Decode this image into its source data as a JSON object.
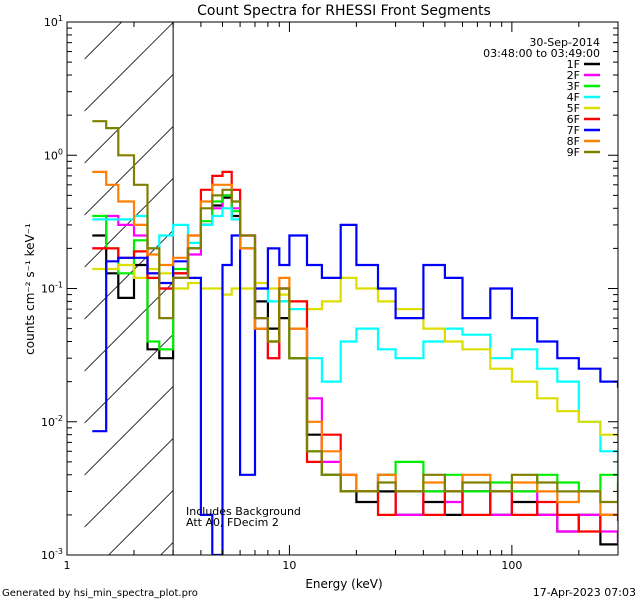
{
  "chart_data": {
    "type": "line",
    "title": "Count Spectra for RHESSI Front Segments",
    "xlabel": "Energy (keV)",
    "ylabel": "counts cm⁻² s⁻¹ keV⁻¹",
    "xscale": "log",
    "yscale": "log",
    "xlim": [
      1,
      300
    ],
    "ylim": [
      0.001,
      10
    ],
    "x_ticks": [
      {
        "v": 1,
        "label": "1"
      },
      {
        "v": 10,
        "label": "10"
      },
      {
        "v": 100,
        "label": "100"
      }
    ],
    "y_ticks": [
      {
        "v": 0.001,
        "base": "10",
        "exp": "-3"
      },
      {
        "v": 0.01,
        "base": "10",
        "exp": "-2"
      },
      {
        "v": 0.1,
        "base": "10",
        "exp": "-1"
      },
      {
        "v": 1,
        "base": "10",
        "exp": "0"
      },
      {
        "v": 10,
        "base": "10",
        "exp": "1"
      }
    ],
    "hatched_region_keV": [
      1.2,
      3.0
    ],
    "marker_line_keV": 3.0,
    "legend": {
      "date": "30-Sep-2014",
      "time_range": "03:48:00 to 03:49:00",
      "entries": [
        {
          "name": "1F",
          "color": "#000000"
        },
        {
          "name": "2F",
          "color": "#ff00ff"
        },
        {
          "name": "3F",
          "color": "#00ee00"
        },
        {
          "name": "4F",
          "color": "#00ffff"
        },
        {
          "name": "5F",
          "color": "#dddd00"
        },
        {
          "name": "6F",
          "color": "#ff0000"
        },
        {
          "name": "7F",
          "color": "#0000ff"
        },
        {
          "name": "8F",
          "color": "#ff8000"
        },
        {
          "name": "9F",
          "color": "#808000"
        }
      ]
    },
    "annotations": [
      "Includes Background",
      "Att A0, FDecim 2"
    ],
    "series": [
      {
        "name": "1F",
        "color": "#000000",
        "x": [
          1.3,
          1.5,
          1.7,
          2.0,
          2.3,
          2.6,
          3.0,
          3.5,
          4.0,
          4.5,
          5.0,
          5.5,
          6.0,
          7.0,
          8.0,
          9.0,
          10,
          12,
          14,
          17,
          20,
          25,
          30,
          40,
          50,
          60,
          80,
          100,
          130,
          160,
          200,
          250,
          300
        ],
        "y": [
          0.25,
          0.13,
          0.085,
          0.15,
          0.035,
          0.03,
          0.13,
          0.2,
          0.3,
          0.42,
          0.48,
          0.35,
          0.2,
          0.08,
          0.05,
          0.06,
          0.03,
          0.008,
          0.004,
          0.003,
          0.0025,
          0.003,
          0.002,
          0.0025,
          0.002,
          0.003,
          0.002,
          0.0025,
          0.002,
          0.0015,
          0.002,
          0.0012,
          0.0015
        ]
      },
      {
        "name": "2F",
        "color": "#ff00ff",
        "x": [
          1.3,
          1.5,
          1.7,
          2.0,
          2.3,
          2.6,
          3.0,
          3.5,
          4.0,
          4.5,
          5.0,
          5.5,
          6.0,
          7.0,
          8.0,
          9.0,
          10,
          12,
          14,
          17,
          20,
          25,
          30,
          40,
          50,
          60,
          80,
          100,
          130,
          160,
          200,
          250,
          300
        ],
        "y": [
          0.2,
          0.35,
          0.3,
          0.25,
          0.13,
          0.1,
          0.12,
          0.18,
          0.3,
          0.4,
          0.5,
          0.4,
          0.25,
          0.06,
          0.03,
          0.1,
          0.05,
          0.015,
          0.005,
          0.003,
          0.003,
          0.004,
          0.002,
          0.003,
          0.0025,
          0.003,
          0.002,
          0.003,
          0.002,
          0.0015,
          0.002,
          0.0015,
          0.0012
        ]
      },
      {
        "name": "3F",
        "color": "#00ee00",
        "x": [
          1.3,
          1.5,
          1.7,
          2.0,
          2.3,
          2.6,
          3.0,
          3.5,
          4.0,
          4.5,
          5.0,
          5.5,
          6.0,
          7.0,
          8.0,
          9.0,
          10,
          12,
          14,
          17,
          20,
          25,
          30,
          40,
          50,
          60,
          80,
          100,
          130,
          160,
          200,
          250,
          300
        ],
        "y": [
          0.35,
          0.2,
          0.13,
          0.23,
          0.04,
          0.035,
          0.14,
          0.2,
          0.32,
          0.45,
          0.5,
          0.38,
          0.2,
          0.05,
          0.04,
          0.08,
          0.03,
          0.006,
          0.004,
          0.003,
          0.003,
          0.004,
          0.005,
          0.003,
          0.004,
          0.003,
          0.0035,
          0.003,
          0.004,
          0.0035,
          0.003,
          0.004,
          0.003
        ]
      },
      {
        "name": "4F",
        "color": "#00ffff",
        "x": [
          1.3,
          1.5,
          1.7,
          2.0,
          2.3,
          2.6,
          3.0,
          3.5,
          4.0,
          4.5,
          5.0,
          5.5,
          6.0,
          7.0,
          8.0,
          9.0,
          10,
          12,
          14,
          17,
          20,
          25,
          30,
          40,
          50,
          60,
          80,
          100,
          130,
          160,
          200,
          250,
          300
        ],
        "y": [
          0.33,
          0.33,
          0.33,
          0.35,
          0.2,
          0.25,
          0.3,
          0.22,
          0.3,
          0.35,
          0.4,
          0.33,
          0.2,
          0.1,
          0.08,
          0.08,
          0.07,
          0.03,
          0.02,
          0.04,
          0.05,
          0.035,
          0.03,
          0.04,
          0.05,
          0.045,
          0.03,
          0.035,
          0.025,
          0.02,
          0.01,
          0.006,
          0.004
        ]
      },
      {
        "name": "5F",
        "color": "#dddd00",
        "x": [
          1.3,
          1.5,
          1.7,
          2.0,
          2.3,
          2.6,
          3.0,
          3.5,
          4.0,
          4.5,
          5.0,
          5.5,
          6.0,
          7.0,
          8.0,
          9.0,
          10,
          12,
          14,
          17,
          20,
          25,
          30,
          40,
          50,
          60,
          80,
          100,
          130,
          160,
          200,
          250,
          300
        ],
        "y": [
          0.14,
          0.14,
          0.15,
          0.12,
          0.14,
          0.13,
          0.1,
          0.11,
          0.1,
          0.1,
          0.09,
          0.1,
          0.1,
          0.11,
          0.1,
          0.09,
          0.08,
          0.07,
          0.08,
          0.12,
          0.1,
          0.08,
          0.07,
          0.05,
          0.04,
          0.035,
          0.025,
          0.02,
          0.015,
          0.012,
          0.01,
          0.008,
          0.007
        ]
      },
      {
        "name": "6F",
        "color": "#ff0000",
        "x": [
          1.3,
          1.5,
          1.7,
          2.0,
          2.3,
          2.6,
          3.0,
          3.5,
          4.0,
          4.5,
          5.0,
          5.5,
          6.0,
          7.0,
          8.0,
          9.0,
          10,
          12,
          14,
          17,
          20,
          25,
          30,
          40,
          50,
          60,
          80,
          100,
          130,
          160,
          200,
          250,
          300
        ],
        "y": [
          0.2,
          0.2,
          0.17,
          0.19,
          0.12,
          0.1,
          0.13,
          0.25,
          0.55,
          0.7,
          0.75,
          0.55,
          0.25,
          0.05,
          0.03,
          0.1,
          0.08,
          0.005,
          0.008,
          0.004,
          0.003,
          0.002,
          0.003,
          0.002,
          0.003,
          0.002,
          0.003,
          0.002,
          0.0025,
          0.002,
          0.0015,
          0.002,
          0.0018
        ]
      },
      {
        "name": "7F",
        "color": "#0000ff",
        "x": [
          1.3,
          1.5,
          1.7,
          2.0,
          2.3,
          2.6,
          3.0,
          3.5,
          4.0,
          4.5,
          5.0,
          5.5,
          6.0,
          7.0,
          8.0,
          9.0,
          10,
          12,
          14,
          17,
          20,
          25,
          30,
          40,
          50,
          60,
          80,
          100,
          130,
          160,
          200,
          250,
          300
        ],
        "y": [
          0.0085,
          0.16,
          0.17,
          0.17,
          0.13,
          0.11,
          0.16,
          0.12,
          0.002,
          0.001,
          0.15,
          0.25,
          0.004,
          0.1,
          0.2,
          0.15,
          0.25,
          0.15,
          0.12,
          0.3,
          0.15,
          0.1,
          0.06,
          0.15,
          0.12,
          0.06,
          0.1,
          0.06,
          0.04,
          0.03,
          0.025,
          0.02,
          0.018
        ]
      },
      {
        "name": "8F",
        "color": "#ff8000",
        "x": [
          1.3,
          1.5,
          1.7,
          2.0,
          2.3,
          2.6,
          3.0,
          3.5,
          4.0,
          4.5,
          5.0,
          5.5,
          6.0,
          7.0,
          8.0,
          9.0,
          10,
          12,
          14,
          17,
          20,
          25,
          30,
          40,
          50,
          60,
          80,
          100,
          130,
          160,
          200,
          250,
          300
        ],
        "y": [
          0.75,
          0.6,
          0.45,
          0.3,
          0.18,
          0.15,
          0.17,
          0.25,
          0.45,
          0.6,
          0.6,
          0.45,
          0.2,
          0.05,
          0.04,
          0.12,
          0.05,
          0.01,
          0.006,
          0.004,
          0.003,
          0.004,
          0.003,
          0.0035,
          0.003,
          0.004,
          0.003,
          0.0035,
          0.003,
          0.0025,
          0.003,
          0.002,
          0.0025
        ]
      },
      {
        "name": "9F",
        "color": "#808000",
        "x": [
          1.3,
          1.5,
          1.7,
          2.0,
          2.3,
          2.6,
          3.0,
          3.5,
          4.0,
          4.5,
          5.0,
          5.5,
          6.0,
          7.0,
          8.0,
          9.0,
          10,
          12,
          14,
          17,
          20,
          25,
          30,
          40,
          50,
          60,
          80,
          100,
          130,
          160,
          200,
          250,
          300
        ],
        "y": [
          1.8,
          1.6,
          1.0,
          0.6,
          0.2,
          0.06,
          0.12,
          0.2,
          0.4,
          0.5,
          0.55,
          0.45,
          0.25,
          0.06,
          0.04,
          0.1,
          0.03,
          0.006,
          0.004,
          0.003,
          0.003,
          0.0035,
          0.003,
          0.004,
          0.003,
          0.0035,
          0.003,
          0.004,
          0.0035,
          0.003,
          0.003,
          0.0025,
          0.0035
        ]
      }
    ]
  },
  "footer": {
    "generated_by": "Generated by hsi_min_spectra_plot.pro",
    "timestamp": "17-Apr-2023 07:03"
  }
}
